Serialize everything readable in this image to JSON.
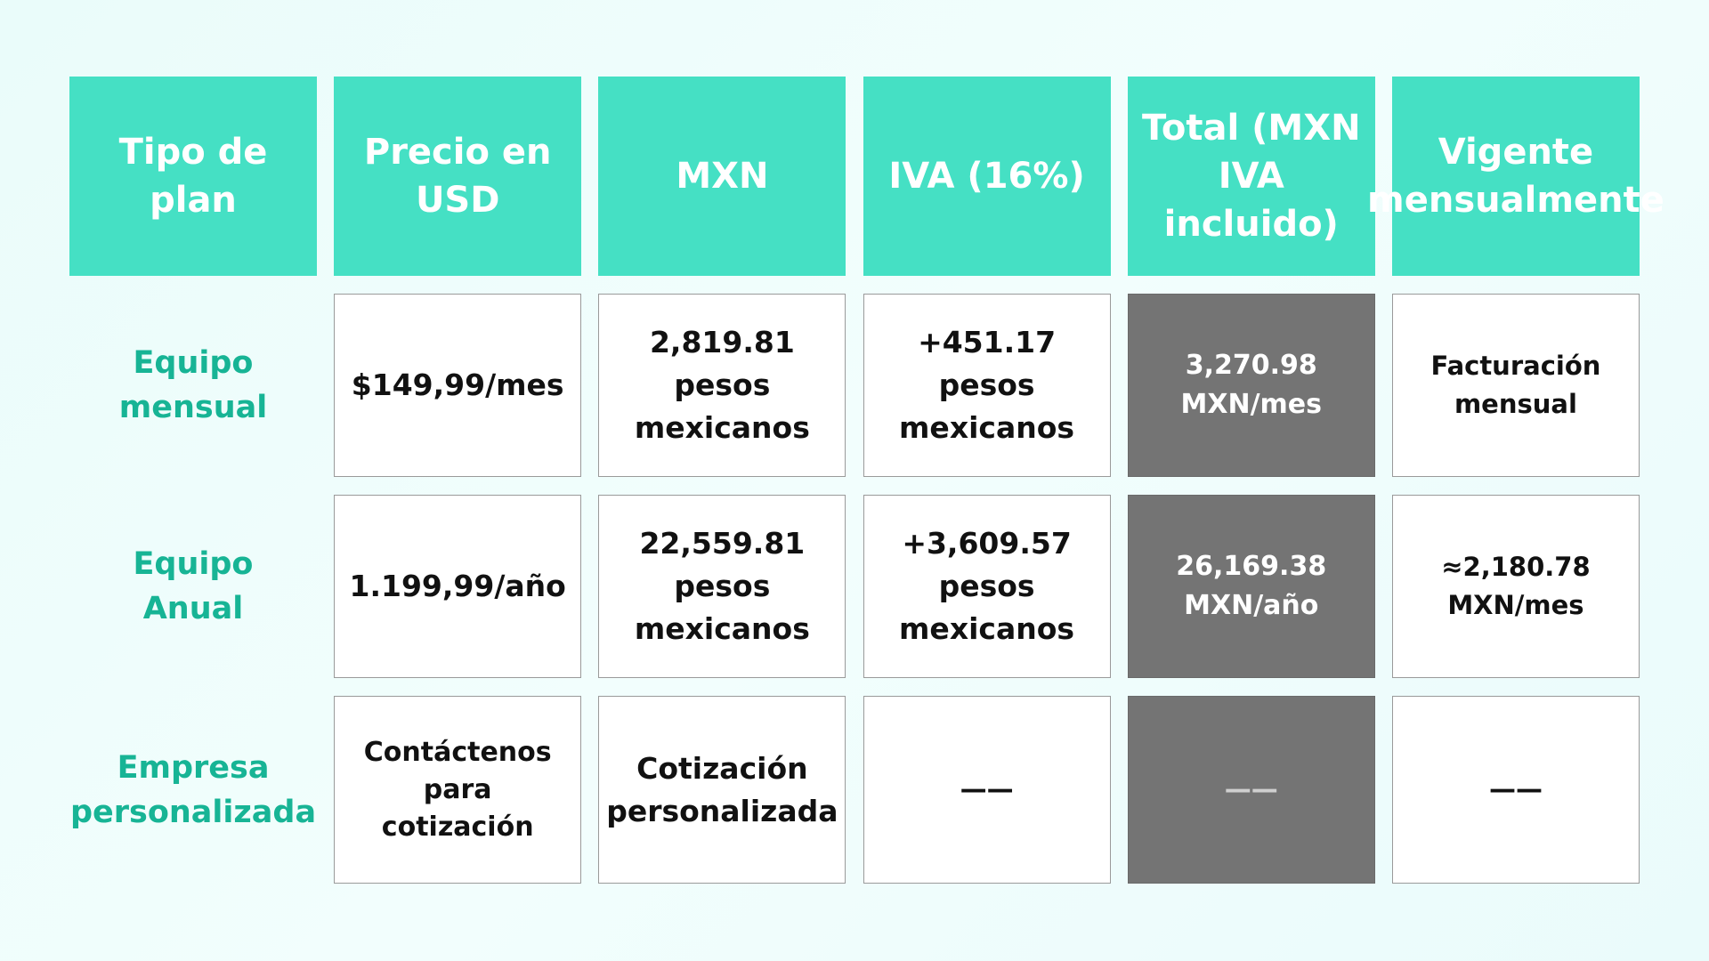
{
  "table": {
    "headers": [
      "Tipo de plan",
      "Precio en USD",
      "MXN",
      "IVA (16%)",
      "Total (MXN IVA incluido)",
      "Vigente mensualmente"
    ],
    "rows": [
      {
        "plan": "Equipo mensual",
        "usd": "$149,99/mes",
        "mxn": "2,819.81 pesos mexicanos",
        "iva": "+451.17 pesos mexicanos",
        "total": "3,270.98 MXN/mes",
        "vigente": "Facturación mensual"
      },
      {
        "plan": "Equipo Anual",
        "usd": "1.199,99/año",
        "mxn": "22,559.81 pesos mexicanos",
        "iva": "+3,609.57 pesos mexicanos",
        "total": "26,169.38 MXN/año",
        "vigente": "≈2,180.78 MXN/mes"
      },
      {
        "plan": "Empresa personalizada",
        "usd": "Contáctenos para cotización",
        "mxn": "Cotización personalizada",
        "iva": "——",
        "total": "——",
        "vigente": "——"
      }
    ]
  },
  "colors": {
    "header_bg": "#45e0c4",
    "plan_text": "#17b495",
    "total_bg": "#747474"
  }
}
